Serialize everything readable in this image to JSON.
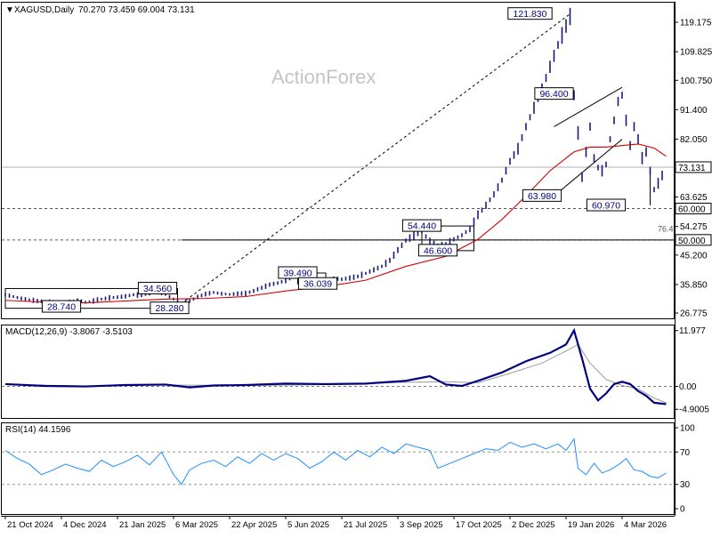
{
  "header": {
    "symbol": "XAGUSD,Daily",
    "ohlc": "70.270 73.459 69.004 73.131"
  },
  "watermark": "ActionForex",
  "colors": {
    "bar": "#1a1a7a",
    "ema": "#d00000",
    "macd_main": "#000080",
    "macd_signal": "#9a9a9a",
    "rsi": "#1e90ff",
    "grid": "#999999",
    "price_tag_bg": "#ffffff"
  },
  "chart_data": [
    {
      "type": "candlestick",
      "title": "XAGUSD,Daily",
      "ylim": [
        26.775,
        124.0
      ],
      "yticks": [
        119.175,
        109.825,
        100.75,
        91.4,
        82.05,
        63.625,
        54.275,
        45.2,
        35.85,
        26.775
      ],
      "price_tags": [
        {
          "label": "73.131",
          "value": 73.131
        },
        {
          "label": "60.000",
          "value": 60.0
        },
        {
          "label": "50.000",
          "value": 50.0
        }
      ],
      "side_label": {
        "label": "76.4",
        "value": 52.0
      },
      "level_lines": [
        {
          "value": 73.131,
          "style": "solid"
        },
        {
          "value": 60.0,
          "style": "dashed"
        },
        {
          "value": 50.0,
          "style": "dashed"
        }
      ],
      "annotations": [
        {
          "label": "121.830",
          "x": 131,
          "y": 121.83
        },
        {
          "label": "96.400",
          "x": 137,
          "y": 96.4
        },
        {
          "label": "63.980",
          "x": 134,
          "y": 63.98
        },
        {
          "label": "60.970",
          "x": 150,
          "y": 60.97
        },
        {
          "label": "54.440",
          "x": 104,
          "y": 54.44
        },
        {
          "label": "46.600",
          "x": 108,
          "y": 46.6
        },
        {
          "label": "39.490",
          "x": 73,
          "y": 39.49
        },
        {
          "label": "36.039",
          "x": 78,
          "y": 36.039
        },
        {
          "label": "34.560",
          "x": 38,
          "y": 34.56
        },
        {
          "label": "28.740",
          "x": 14,
          "y": 28.74
        },
        {
          "label": "28.280",
          "x": 41,
          "y": 28.28
        }
      ],
      "series": [
        {
          "name": "Price",
          "points": [
            [
              0,
              32.6
            ],
            [
              2,
              32.0
            ],
            [
              4,
              31.4
            ],
            [
              6,
              31.0
            ],
            [
              8,
              30.6
            ],
            [
              10,
              30.4
            ],
            [
              12,
              30.2
            ],
            [
              14,
              29.6
            ],
            [
              16,
              30.3
            ],
            [
              18,
              30.8
            ],
            [
              20,
              30.2
            ],
            [
              22,
              30.6
            ],
            [
              24,
              31.2
            ],
            [
              26,
              31.6
            ],
            [
              28,
              31.8
            ],
            [
              30,
              32.1
            ],
            [
              32,
              32.6
            ],
            [
              34,
              32.4
            ],
            [
              36,
              33.0
            ],
            [
              38,
              33.6
            ],
            [
              40,
              32.8
            ],
            [
              42,
              31.2
            ],
            [
              44,
              29.8
            ],
            [
              46,
              30.6
            ],
            [
              48,
              31.9
            ],
            [
              50,
              32.8
            ],
            [
              52,
              33.3
            ],
            [
              54,
              32.9
            ],
            [
              56,
              32.7
            ],
            [
              58,
              32.9
            ],
            [
              60,
              33.0
            ],
            [
              62,
              33.8
            ],
            [
              64,
              34.8
            ],
            [
              66,
              35.8
            ],
            [
              68,
              36.3
            ],
            [
              70,
              37.1
            ],
            [
              72,
              38.2
            ],
            [
              74,
              38.8
            ],
            [
              76,
              37.9
            ],
            [
              78,
              37.1
            ],
            [
              80,
              37.3
            ],
            [
              82,
              37.8
            ],
            [
              84,
              37.5
            ],
            [
              86,
              37.9
            ],
            [
              88,
              38.4
            ],
            [
              90,
              39.4
            ],
            [
              92,
              40.5
            ],
            [
              94,
              41.6
            ],
            [
              96,
              43.5
            ],
            [
              98,
              46.8
            ],
            [
              100,
              49.8
            ],
            [
              102,
              51.4
            ],
            [
              104,
              52.6
            ],
            [
              106,
              49.6
            ],
            [
              108,
              47.8
            ],
            [
              110,
              48.6
            ],
            [
              112,
              50.2
            ],
            [
              114,
              51.5
            ],
            [
              116,
              53.5
            ],
            [
              118,
              58.0
            ],
            [
              120,
              61.0
            ],
            [
              122,
              64.5
            ],
            [
              124,
              69.0
            ],
            [
              126,
              75.0
            ],
            [
              128,
              79.0
            ],
            [
              130,
              86.0
            ],
            [
              132,
              92.0
            ],
            [
              134,
              98.0
            ],
            [
              136,
              105.0
            ],
            [
              138,
              112.0
            ],
            [
              140,
              118.0
            ],
            [
              141,
              121.0
            ],
            [
              142,
              96.0
            ],
            [
              143,
              84.0
            ],
            [
              144,
              70.0
            ],
            [
              145,
              78.0
            ],
            [
              146,
              86.0
            ],
            [
              147,
              76.0
            ],
            [
              148,
              73.0
            ],
            [
              149,
              72.0
            ],
            [
              150,
              74.0
            ],
            [
              151,
              82.0
            ],
            [
              152,
              88.0
            ],
            [
              153,
              94.0
            ],
            [
              154,
              96.0
            ],
            [
              155,
              88.0
            ],
            [
              156,
              80.0
            ],
            [
              157,
              86.0
            ],
            [
              158,
              82.0
            ],
            [
              159,
              76.0
            ],
            [
              160,
              78.0
            ],
            [
              161,
              72.0
            ],
            [
              162,
              66.0
            ],
            [
              163,
              68.0
            ],
            [
              164,
              70.5
            ],
            [
              165,
              73.1
            ]
          ]
        },
        {
          "name": "EMA",
          "points": [
            [
              0,
              30.8
            ],
            [
              10,
              30.2
            ],
            [
              20,
              30.0
            ],
            [
              30,
              30.6
            ],
            [
              40,
              31.2
            ],
            [
              50,
              31.4
            ],
            [
              60,
              32.0
            ],
            [
              70,
              33.8
            ],
            [
              80,
              35.2
            ],
            [
              90,
              37.2
            ],
            [
              100,
              41.6
            ],
            [
              110,
              44.8
            ],
            [
              118,
              50.2
            ],
            [
              124,
              56.5
            ],
            [
              130,
              64.0
            ],
            [
              136,
              72.0
            ],
            [
              142,
              78.0
            ],
            [
              146,
              79.5
            ],
            [
              150,
              79.5
            ],
            [
              154,
              80.0
            ],
            [
              158,
              80.5
            ],
            [
              162,
              79.2
            ],
            [
              165,
              76.6
            ]
          ]
        }
      ],
      "xlabels": [
        {
          "label": "21 Oct 2024",
          "x": 0
        },
        {
          "label": "4 Dec 2024",
          "x": 14
        },
        {
          "label": "21 Jan 2025",
          "x": 28
        },
        {
          "label": "6 Mar 2025",
          "x": 42
        },
        {
          "label": "22 Apr 2025",
          "x": 56
        },
        {
          "label": "5 Jun 2025",
          "x": 70
        },
        {
          "label": "21 Jul 2025",
          "x": 84
        },
        {
          "label": "3 Sep 2025",
          "x": 98
        },
        {
          "label": "17 Oct 2025",
          "x": 112
        },
        {
          "label": "2 Dec 2025",
          "x": 126
        },
        {
          "label": "19 Jan 2026",
          "x": 140
        },
        {
          "label": "4 Mar 2026",
          "x": 154
        }
      ],
      "xlim": [
        0,
        166
      ]
    },
    {
      "type": "line",
      "title": "MACD(12,26,9) -3.8067 -3.5103",
      "ylim": [
        -6.0,
        12.5
      ],
      "yticks": [
        11.977,
        0.0,
        -4.9005
      ],
      "ytick_labels": [
        "11.977",
        "0.00",
        "-4.9005"
      ],
      "series": [
        {
          "name": "MACD",
          "points": [
            [
              0,
              0.5
            ],
            [
              10,
              0.1
            ],
            [
              20,
              0.0
            ],
            [
              30,
              0.3
            ],
            [
              40,
              0.4
            ],
            [
              46,
              -0.2
            ],
            [
              52,
              0.2
            ],
            [
              60,
              0.3
            ],
            [
              70,
              0.6
            ],
            [
              80,
              0.5
            ],
            [
              90,
              0.6
            ],
            [
              100,
              1.2
            ],
            [
              106,
              2.2
            ],
            [
              110,
              0.4
            ],
            [
              114,
              0.1
            ],
            [
              118,
              1.2
            ],
            [
              124,
              3.0
            ],
            [
              130,
              5.4
            ],
            [
              136,
              7.2
            ],
            [
              140,
              9.0
            ],
            [
              142,
              12.0
            ],
            [
              144,
              6.0
            ],
            [
              146,
              -0.5
            ],
            [
              148,
              -3.0
            ],
            [
              150,
              -1.5
            ],
            [
              152,
              0.5
            ],
            [
              154,
              1.0
            ],
            [
              156,
              0.5
            ],
            [
              158,
              -1.0
            ],
            [
              160,
              -2.0
            ],
            [
              162,
              -3.5
            ],
            [
              165,
              -3.8
            ]
          ]
        },
        {
          "name": "Signal",
          "points": [
            [
              0,
              0.4
            ],
            [
              20,
              0.1
            ],
            [
              40,
              0.3
            ],
            [
              60,
              0.2
            ],
            [
              80,
              0.4
            ],
            [
              100,
              0.9
            ],
            [
              110,
              1.0
            ],
            [
              118,
              0.8
            ],
            [
              126,
              2.8
            ],
            [
              134,
              5.0
            ],
            [
              140,
              7.6
            ],
            [
              143,
              9.0
            ],
            [
              146,
              5.0
            ],
            [
              150,
              1.5
            ],
            [
              154,
              0.2
            ],
            [
              158,
              -0.5
            ],
            [
              162,
              -2.5
            ],
            [
              165,
              -3.5
            ]
          ]
        }
      ],
      "xlim": [
        0,
        166
      ]
    },
    {
      "type": "line",
      "title": "RSI(14) 44.1596",
      "ylim": [
        0,
        100
      ],
      "yticks": [
        100,
        70,
        30,
        0
      ],
      "ytick_labels": [
        "100",
        "70",
        "30",
        "0"
      ],
      "levels": [
        70,
        30
      ],
      "series": [
        {
          "name": "RSI",
          "points": [
            [
              0,
              72
            ],
            [
              3,
              62
            ],
            [
              6,
              55
            ],
            [
              9,
              42
            ],
            [
              12,
              48
            ],
            [
              15,
              55
            ],
            [
              18,
              50
            ],
            [
              21,
              46
            ],
            [
              24,
              60
            ],
            [
              27,
              52
            ],
            [
              30,
              58
            ],
            [
              33,
              66
            ],
            [
              36,
              54
            ],
            [
              39,
              70
            ],
            [
              42,
              42
            ],
            [
              44,
              30
            ],
            [
              46,
              48
            ],
            [
              49,
              56
            ],
            [
              52,
              60
            ],
            [
              55,
              52
            ],
            [
              58,
              64
            ],
            [
              61,
              56
            ],
            [
              64,
              68
            ],
            [
              67,
              60
            ],
            [
              70,
              68
            ],
            [
              73,
              62
            ],
            [
              76,
              50
            ],
            [
              79,
              58
            ],
            [
              82,
              70
            ],
            [
              85,
              60
            ],
            [
              88,
              72
            ],
            [
              91,
              64
            ],
            [
              94,
              76
            ],
            [
              97,
              68
            ],
            [
              100,
              80
            ],
            [
              103,
              76
            ],
            [
              106,
              72
            ],
            [
              108,
              50
            ],
            [
              111,
              56
            ],
            [
              114,
              62
            ],
            [
              117,
              68
            ],
            [
              120,
              74
            ],
            [
              123,
              72
            ],
            [
              126,
              82
            ],
            [
              129,
              76
            ],
            [
              132,
              80
            ],
            [
              135,
              74
            ],
            [
              138,
              80
            ],
            [
              140,
              72
            ],
            [
              142,
              86
            ],
            [
              143,
              50
            ],
            [
              145,
              42
            ],
            [
              147,
              56
            ],
            [
              149,
              44
            ],
            [
              151,
              48
            ],
            [
              153,
              54
            ],
            [
              155,
              62
            ],
            [
              157,
              48
            ],
            [
              159,
              46
            ],
            [
              161,
              40
            ],
            [
              163,
              38
            ],
            [
              165,
              44
            ]
          ]
        }
      ],
      "xlim": [
        0,
        166
      ]
    }
  ]
}
